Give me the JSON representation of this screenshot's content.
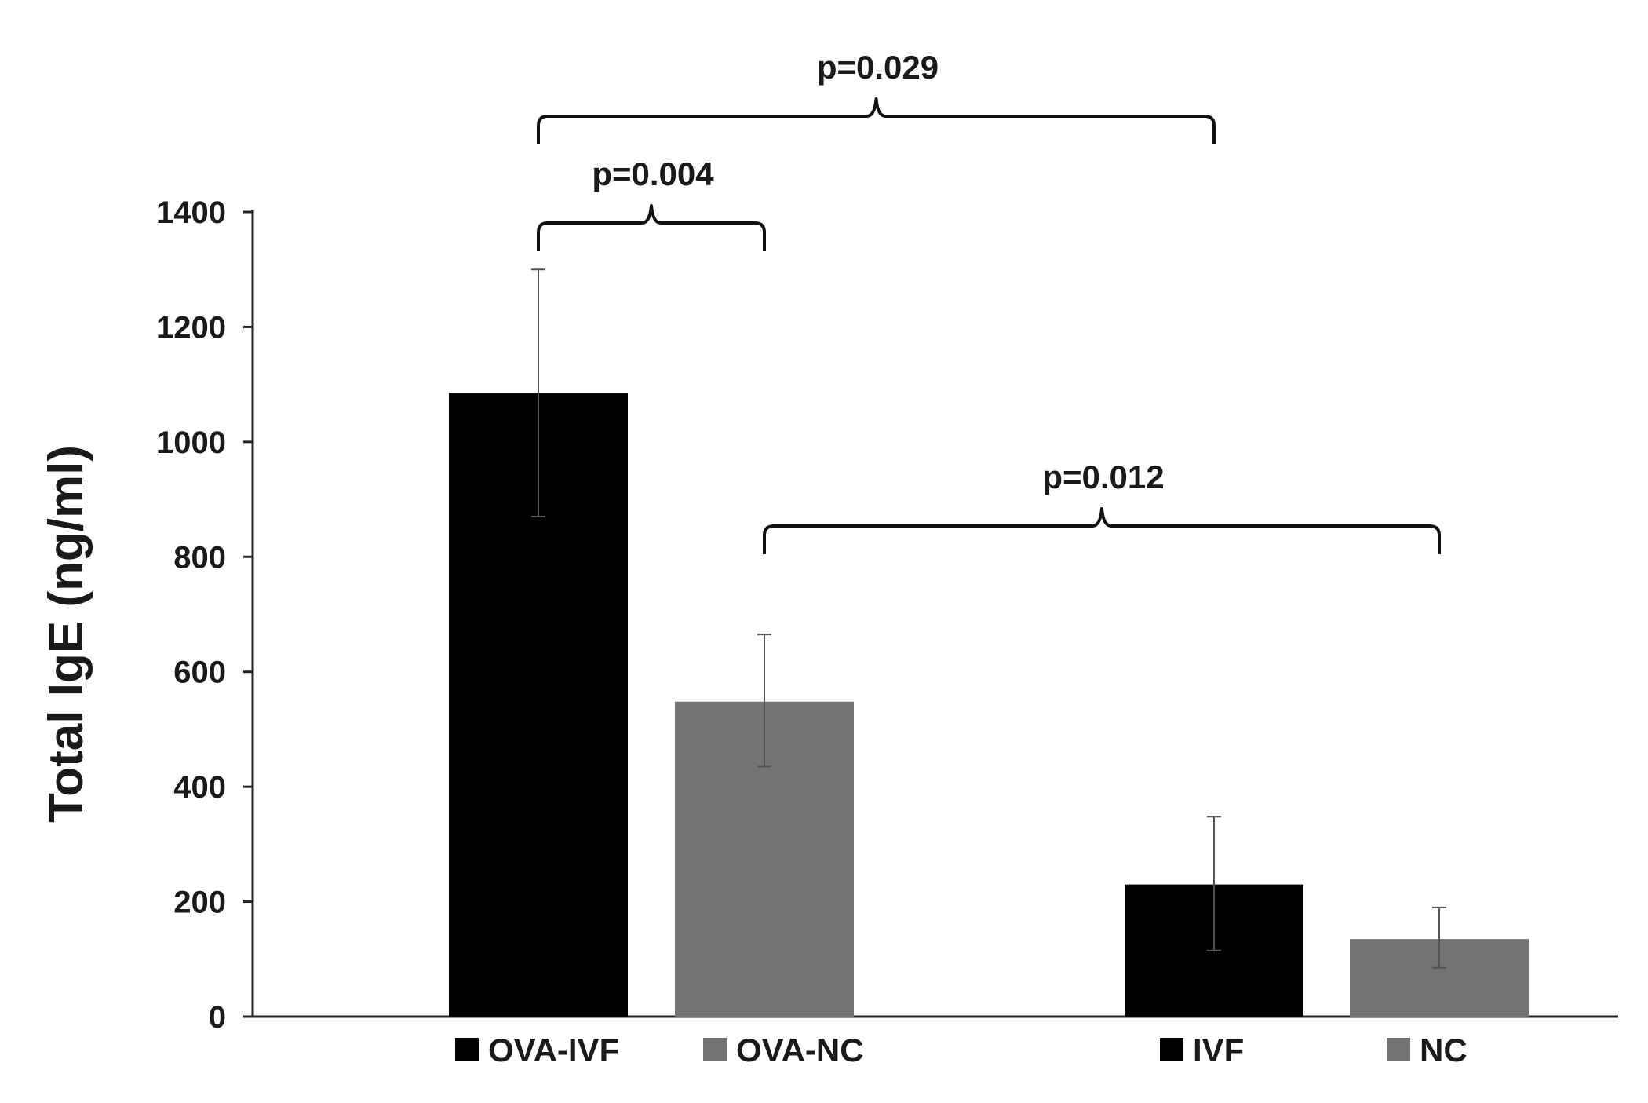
{
  "chart_data": {
    "type": "bar",
    "ylabel": "Total IgE (ng/ml)",
    "xlabel": "",
    "title": "",
    "ylim": [
      0,
      1400
    ],
    "yticks": [
      0,
      200,
      400,
      600,
      800,
      1000,
      1200,
      1400
    ],
    "grid": false,
    "legend": "bottom",
    "series": [
      {
        "name": "OVA-IVF",
        "color": "#000000",
        "value": 1085,
        "error_low": 870,
        "error_high": 1300
      },
      {
        "name": "OVA-NC",
        "color": "#737373",
        "value": 548,
        "error_low": 435,
        "error_high": 665
      },
      {
        "name": "IVF",
        "color": "#000000",
        "value": 230,
        "error_low": 115,
        "error_high": 348
      },
      {
        "name": "NC",
        "color": "#737373",
        "value": 135,
        "error_low": 85,
        "error_high": 190
      }
    ],
    "annotations": [
      {
        "label": "p=0.029",
        "from": "OVA-IVF",
        "to": "IVF"
      },
      {
        "label": "p=0.004",
        "from": "OVA-IVF",
        "to": "OVA-NC"
      },
      {
        "label": "p=0.012",
        "from": "OVA-NC",
        "to": "NC"
      }
    ]
  }
}
